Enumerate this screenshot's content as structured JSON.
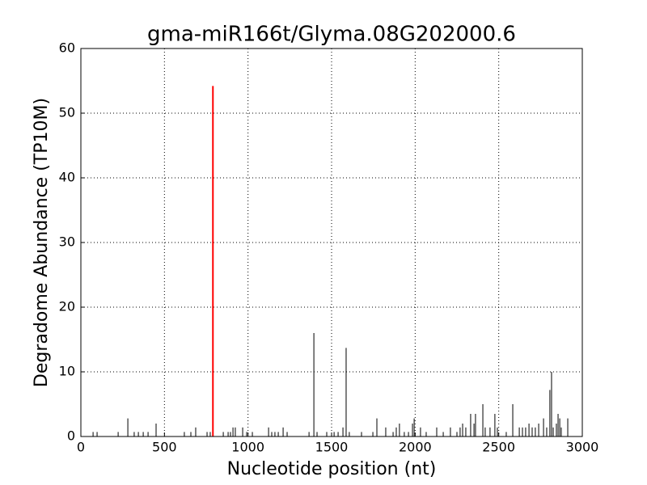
{
  "chart_data": {
    "type": "stem",
    "title": "gma-miR166t/Glyma.08G202000.6",
    "xlabel": "Nucleotide position (nt)",
    "ylabel": "Degradome Abundance (TP10M)",
    "xlim": [
      0,
      3000
    ],
    "xticks": [
      0,
      500,
      1000,
      1500,
      2000,
      2500,
      3000
    ],
    "ylim": [
      0,
      60
    ],
    "yticks": [
      0,
      10,
      20,
      30,
      40,
      50,
      60
    ],
    "grid": true,
    "series": [
      {
        "color": "#000000",
        "x": [
          73,
          97,
          223,
          281,
          319,
          344,
          373,
          402,
          450,
          619,
          658,
          687,
          755,
          774,
          852,
          881,
          895,
          910,
          924,
          968,
          992,
          1026,
          1123,
          1142,
          1161,
          1181,
          1210,
          1234,
          1365,
          1394,
          1413,
          1471,
          1515,
          1539,
          1568,
          1587,
          1606,
          1679,
          1747,
          1771,
          1824,
          1868,
          1887,
          1906,
          1935,
          1960,
          1984,
          1994,
          2032,
          2066,
          2129,
          2168,
          2211,
          2250,
          2269,
          2284,
          2303,
          2332,
          2352,
          2361,
          2405,
          2419,
          2448,
          2477,
          2492,
          2545,
          2584,
          2623,
          2642,
          2661,
          2681,
          2700,
          2719,
          2739,
          2768,
          2787,
          2806,
          2816,
          2826,
          2845,
          2855,
          2865,
          2874,
          2913
        ],
        "values": [
          0.7,
          0.7,
          0.7,
          2.8,
          0.7,
          0.7,
          0.7,
          0.7,
          2.0,
          0.7,
          0.7,
          1.4,
          0.7,
          0.7,
          0.7,
          0.7,
          0.7,
          1.4,
          1.4,
          1.4,
          0.7,
          0.7,
          1.4,
          0.7,
          0.7,
          0.7,
          1.4,
          0.7,
          0.7,
          16,
          0.7,
          0.7,
          0.7,
          0.7,
          1.4,
          13.7,
          0.7,
          0.7,
          0.7,
          2.8,
          1.4,
          0.7,
          1.4,
          2.0,
          0.7,
          0.7,
          2.0,
          2.8,
          1.4,
          0.7,
          1.4,
          0.7,
          1.4,
          0.7,
          1.4,
          2.0,
          1.4,
          3.5,
          2.0,
          3.5,
          5.0,
          1.4,
          1.4,
          3.5,
          1.4,
          0.7,
          5.0,
          1.4,
          1.4,
          1.4,
          2.0,
          1.4,
          1.4,
          2.0,
          2.8,
          1.4,
          7.2,
          10,
          1.4,
          2.0,
          3.5,
          2.8,
          1.4,
          2.8
        ]
      },
      {
        "color": "#ff0000",
        "x": [
          790
        ],
        "values": [
          54.2
        ]
      }
    ]
  }
}
